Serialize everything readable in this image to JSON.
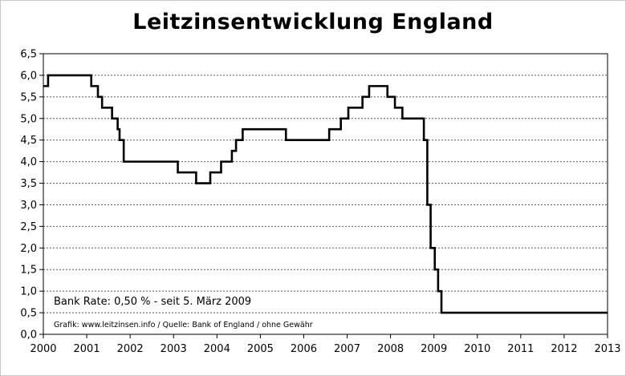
{
  "chart_data": {
    "type": "line",
    "step": true,
    "title": "Leitzinsentwicklung England",
    "xlabel": "",
    "ylabel": "",
    "xlim": [
      2000,
      2013
    ],
    "ylim": [
      0,
      6.5
    ],
    "x_ticks": [
      "2000",
      "2001",
      "2002",
      "2003",
      "2004",
      "2005",
      "2006",
      "2007",
      "2008",
      "2009",
      "2010",
      "2011",
      "2012",
      "2013"
    ],
    "y_ticks": [
      "0,0",
      "0,5",
      "1,0",
      "1,5",
      "2,0",
      "2,5",
      "3,0",
      "3,5",
      "4,0",
      "4,5",
      "5,0",
      "5,5",
      "6,0",
      "6,5"
    ],
    "grid": "horizontal-dotted",
    "line_color": "#000000",
    "annotations": [
      "Bank Rate: 0,50 %  - seit 5. März 2009",
      "Grafik: www.leitzinsen.info / Quelle: Bank of England / ohne Gewähr"
    ],
    "series": [
      {
        "x": [
          "2000-01-01",
          "2000-02-10",
          "2001-02-08",
          "2001-04-05",
          "2001-05-10",
          "2001-08-02",
          "2001-09-18",
          "2001-10-04",
          "2001-11-08",
          "2003-02-06",
          "2003-07-10",
          "2003-11-06",
          "2004-02-05",
          "2004-05-06",
          "2004-06-10",
          "2004-08-05",
          "2005-08-04",
          "2006-08-03",
          "2006-11-09",
          "2007-01-11",
          "2007-05-10",
          "2007-07-05",
          "2007-12-06",
          "2008-02-07",
          "2008-04-10",
          "2008-10-08",
          "2008-11-06",
          "2008-12-04",
          "2009-01-08",
          "2009-02-05",
          "2009-03-05",
          "2013-01-01"
        ],
        "y": [
          5.75,
          6.0,
          5.75,
          5.5,
          5.25,
          5.0,
          4.75,
          4.5,
          4.0,
          3.75,
          3.5,
          3.75,
          4.0,
          4.25,
          4.5,
          4.75,
          4.5,
          4.75,
          5.0,
          5.25,
          5.5,
          5.75,
          5.5,
          5.25,
          5.0,
          4.5,
          3.0,
          2.0,
          1.5,
          1.0,
          0.5,
          0.5
        ]
      }
    ]
  }
}
